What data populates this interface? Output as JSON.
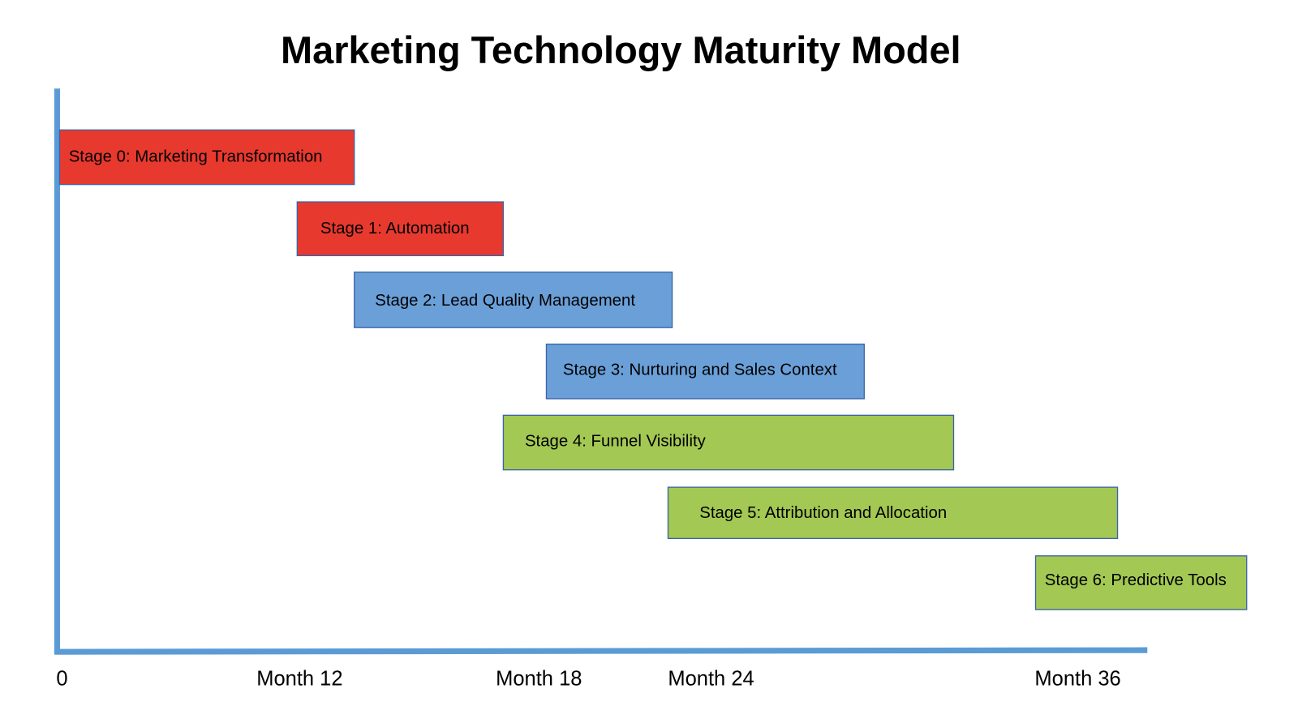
{
  "title": "Marketing Technology Maturity Model",
  "stages": [
    {
      "label": "Stage 0: Marketing Transformation"
    },
    {
      "label": "Stage 1: Automation"
    },
    {
      "label": "Stage 2: Lead Quality Management"
    },
    {
      "label": "Stage 3: Nurturing and Sales Context"
    },
    {
      "label": "Stage 4: Funnel Visibility"
    },
    {
      "label": "Stage 5: Attribution and Allocation"
    },
    {
      "label": "Stage 6: Predictive Tools"
    }
  ],
  "axis_labels": [
    "0",
    "Month 12",
    "Month 18",
    "Month 24",
    "Month 36"
  ]
}
